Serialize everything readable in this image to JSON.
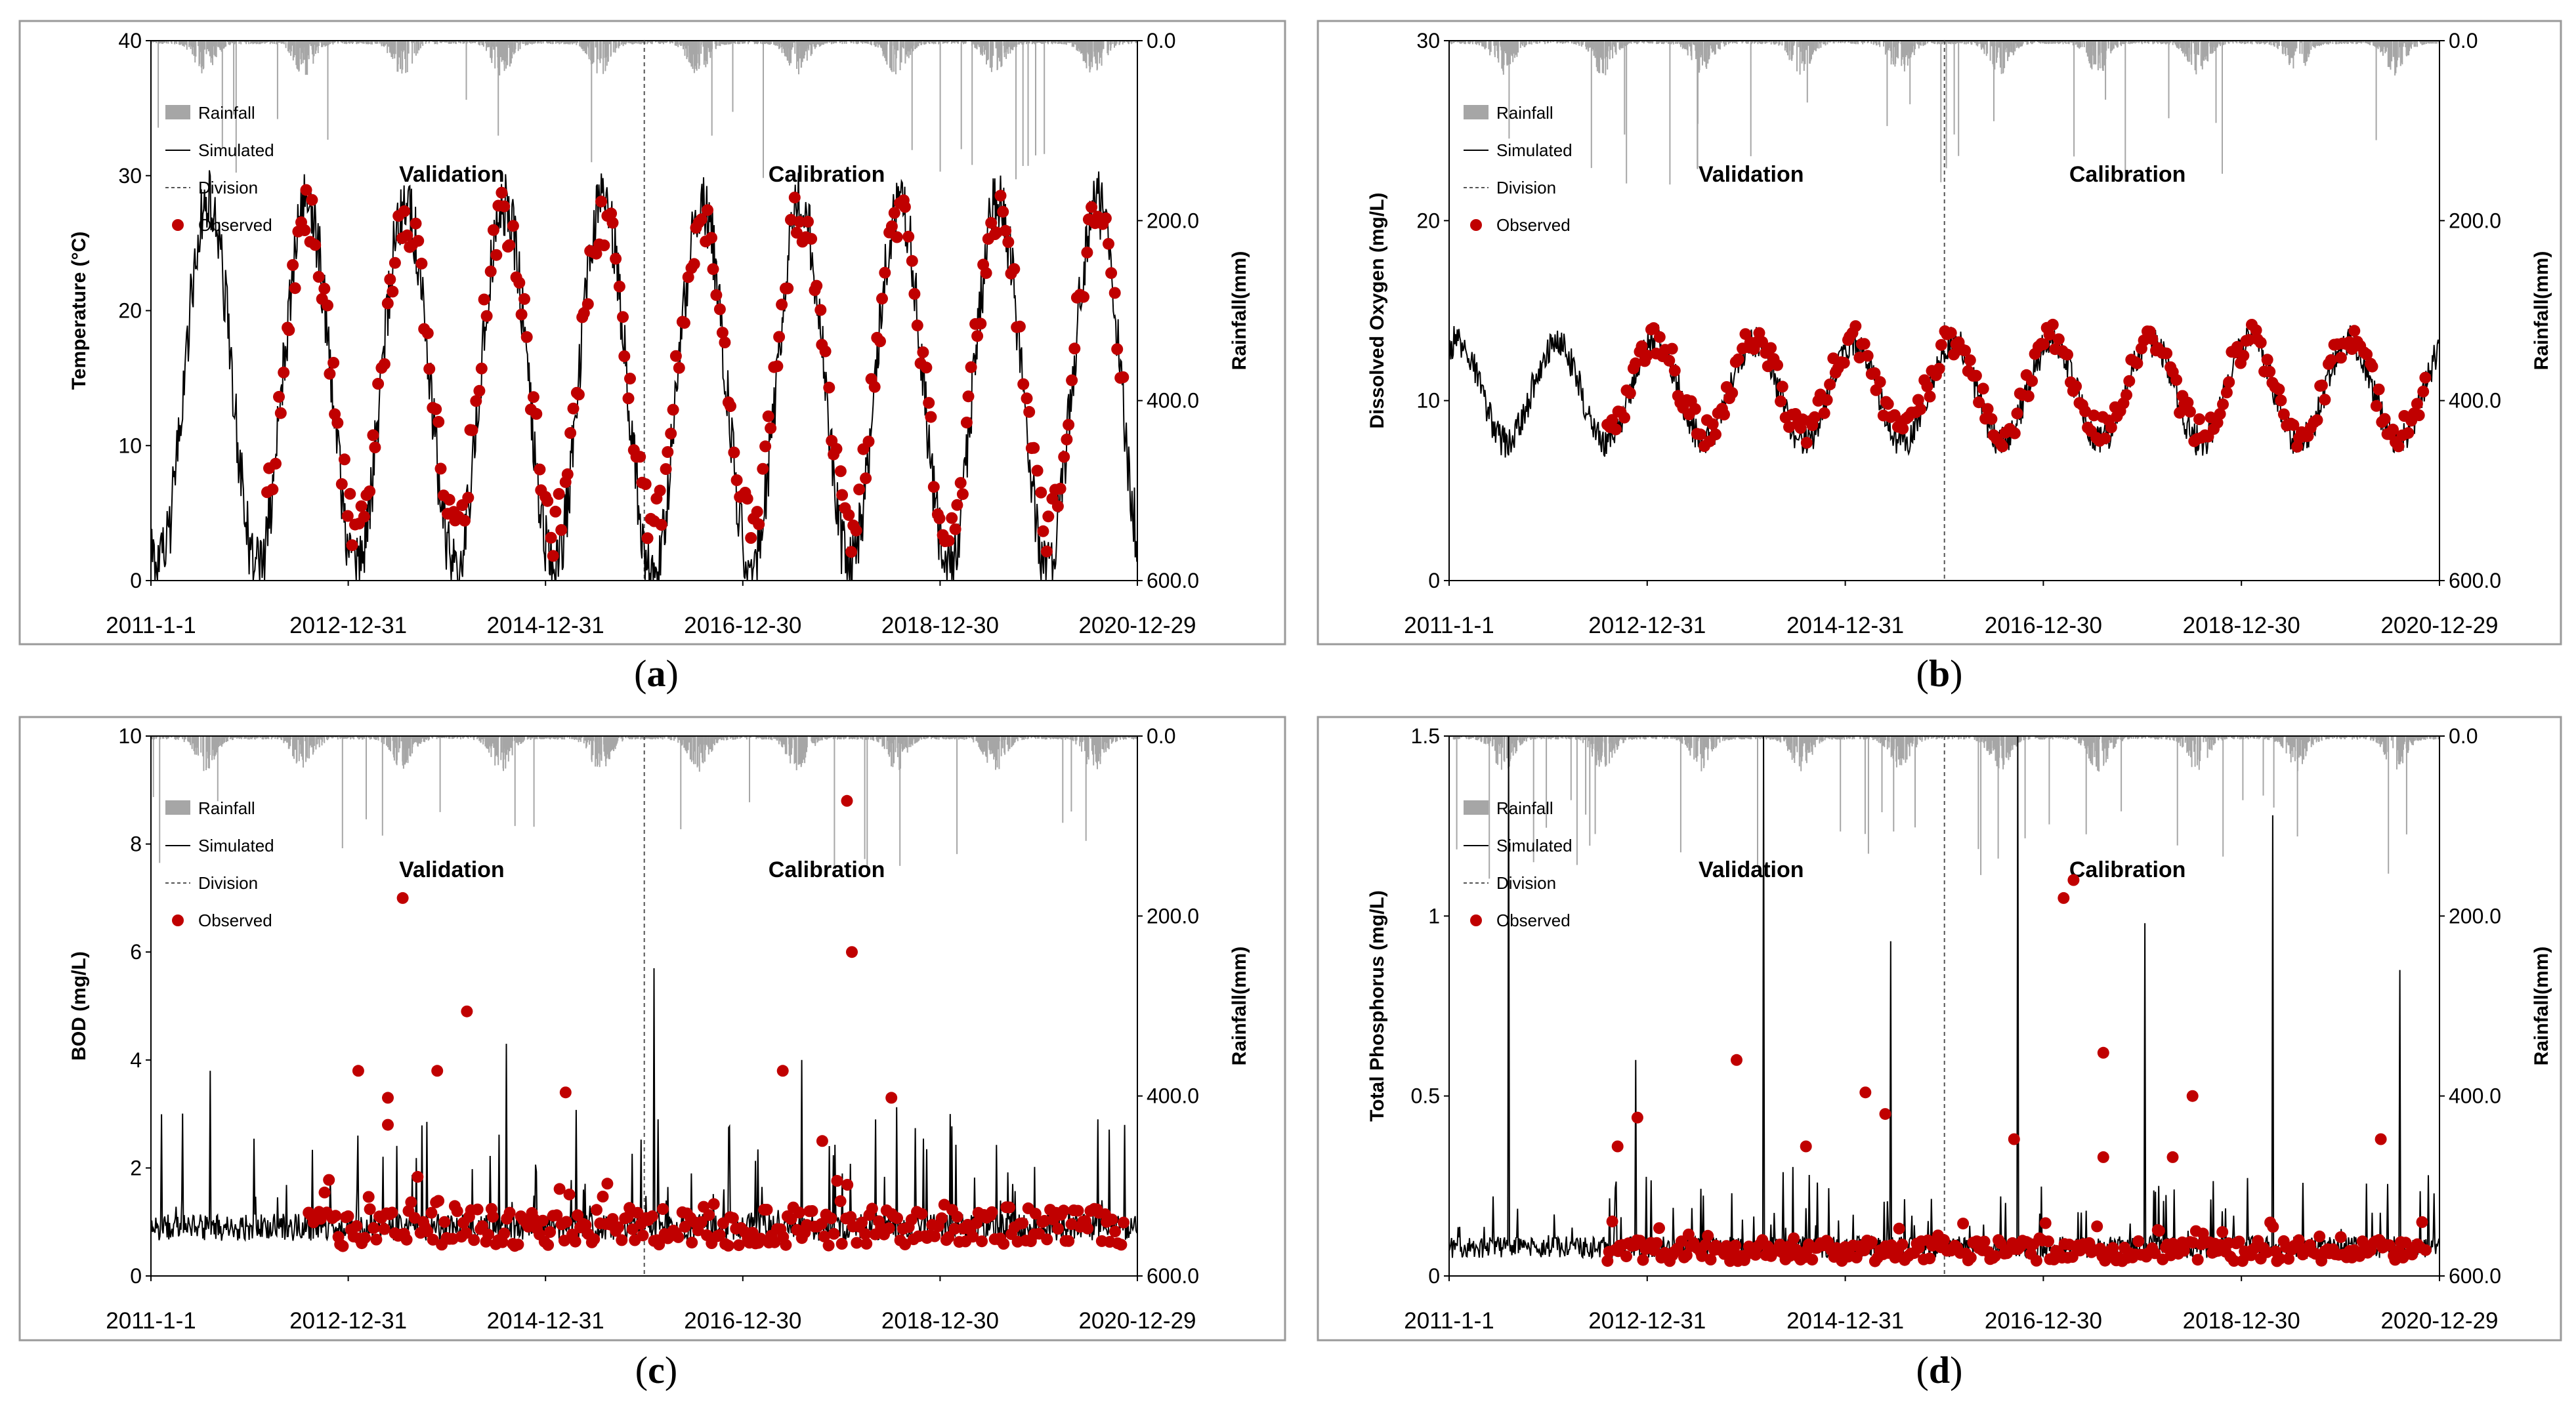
{
  "figure": {
    "x_axis_labels": [
      "2011-1-1",
      "2012-12-31",
      "2014-12-31",
      "2016-12-30",
      "2018-12-30",
      "2020-12-29"
    ],
    "rainfall_axis_title": "Rainfall(mm)",
    "rainfall_ticks": [
      "0.0",
      "200.0",
      "400.0",
      "600.0"
    ],
    "period_labels": [
      "Validation",
      "Calibration"
    ],
    "legend": [
      "Rainfall",
      "Simulated",
      "Division",
      "Observed"
    ],
    "colors": {
      "observed": "#c00000",
      "simulated": "#000000",
      "rainfall": "#a6a6a6",
      "division": "#555555"
    }
  },
  "chart_data": [
    {
      "id": "a",
      "caption": "(a)",
      "type": "line",
      "ylabel": "Temperature (°C)",
      "ylim": [
        0,
        40
      ],
      "yticks": [
        "0",
        "10",
        "20",
        "30",
        "40"
      ],
      "rainfall_ylim": [
        600,
        0
      ],
      "xlim": [
        "2011-01-01",
        "2020-12-29"
      ],
      "division_date": "2015-12-31",
      "series": [
        {
          "name": "Simulated",
          "kind": "seasonal",
          "mean": 14.5,
          "amplitude": 13.5,
          "noise": 2.5,
          "min": 0,
          "max": 40
        },
        {
          "name": "Observed",
          "kind": "points",
          "start": "2012-03-01",
          "end": "2020-11-15",
          "mean": 15.5,
          "amplitude": 11.5,
          "noise": 2.2,
          "count": 300
        },
        {
          "name": "Rainfall",
          "kind": "bars",
          "typical_mm": 20,
          "max_mm": 160
        }
      ]
    },
    {
      "id": "b",
      "caption": "(b)",
      "type": "line",
      "ylabel": "Dissolved Oxygen (mg/L)",
      "ylim": [
        0,
        30
      ],
      "yticks": [
        "0",
        "10",
        "20",
        "30"
      ],
      "rainfall_ylim": [
        600,
        0
      ],
      "xlim": [
        "2011-01-01",
        "2020-12-29"
      ],
      "division_date": "2015-12-31",
      "series": [
        {
          "name": "Simulated",
          "kind": "seasonal",
          "mean": 10.5,
          "amplitude": -2.8,
          "noise": 0.9,
          "min": 3.5,
          "max": 14.8
        },
        {
          "name": "Observed",
          "kind": "points",
          "start": "2012-08-01",
          "end": "2020-11-15",
          "mean": 10.8,
          "amplitude": -2.6,
          "noise": 0.9,
          "count": 280
        },
        {
          "name": "Rainfall",
          "kind": "bars",
          "typical_mm": 20,
          "max_mm": 160
        }
      ]
    },
    {
      "id": "c",
      "caption": "(c)",
      "type": "line",
      "ylabel": "BOD (mg/L)",
      "ylim": [
        0,
        10
      ],
      "yticks": [
        "0",
        "2",
        "4",
        "6",
        "8",
        "10"
      ],
      "rainfall_ylim": [
        600,
        0
      ],
      "xlim": [
        "2011-01-01",
        "2020-12-29"
      ],
      "division_date": "2015-12-31",
      "series": [
        {
          "name": "Simulated",
          "kind": "flashy",
          "base": 0.9,
          "noise": 0.25,
          "peaks": [
            3.8,
            2.6,
            4.3,
            5.7,
            4.0,
            3.0,
            2.9
          ],
          "min": 0.1,
          "max": 6.0
        },
        {
          "name": "Observed",
          "kind": "points",
          "start": "2012-08-01",
          "end": "2020-11-15",
          "mean": 0.9,
          "amplitude": 0,
          "noise": 0.35,
          "count": 300,
          "extras": [
            [
              2013.55,
              7.0
            ],
            [
              2014.2,
              4.9
            ],
            [
              2018.05,
              8.8
            ],
            [
              2018.1,
              6.0
            ],
            [
              2013.1,
              3.8
            ],
            [
              2013.9,
              3.8
            ],
            [
              2013.4,
              3.3
            ],
            [
              2015.2,
              3.4
            ],
            [
              2017.4,
              3.8
            ],
            [
              2018.5,
              3.3
            ],
            [
              2013.4,
              2.8
            ],
            [
              2017.8,
              2.5
            ]
          ]
        },
        {
          "name": "Rainfall",
          "kind": "bars",
          "typical_mm": 20,
          "max_mm": 160
        }
      ]
    },
    {
      "id": "d",
      "caption": "(d)",
      "type": "line",
      "ylabel": "Total Phosphorus (mg/L)",
      "ylim": [
        0,
        1.5
      ],
      "yticks": [
        "0",
        "0.5",
        "1",
        "1.5"
      ],
      "rainfall_ylim": [
        600,
        0
      ],
      "xlim": [
        "2011-01-01",
        "2020-12-29"
      ],
      "division_date": "2015-12-31",
      "series": [
        {
          "name": "Simulated",
          "kind": "flashy",
          "base": 0.08,
          "noise": 0.03,
          "peaks": [
            1.5,
            0.6,
            1.5,
            0.93,
            1.5,
            0.98,
            1.28,
            0.85
          ],
          "min": 0.01,
          "max": 1.5
        },
        {
          "name": "Observed",
          "kind": "points",
          "start": "2012-08-01",
          "end": "2020-11-15",
          "mean": 0.07,
          "amplitude": 0,
          "noise": 0.03,
          "count": 300,
          "extras": [
            [
              2017.3,
              1.1
            ],
            [
              2017.2,
              1.05
            ],
            [
              2013.9,
              0.6
            ],
            [
              2017.6,
              0.62
            ],
            [
              2015.2,
              0.51
            ],
            [
              2018.5,
              0.5
            ],
            [
              2015.4,
              0.45
            ],
            [
              2012.9,
              0.44
            ],
            [
              2016.7,
              0.38
            ],
            [
              2012.7,
              0.36
            ],
            [
              2014.6,
              0.36
            ],
            [
              2018.3,
              0.33
            ],
            [
              2020.4,
              0.38
            ],
            [
              2017.6,
              0.33
            ]
          ]
        },
        {
          "name": "Rainfall",
          "kind": "bars",
          "typical_mm": 20,
          "max_mm": 160
        }
      ]
    }
  ]
}
